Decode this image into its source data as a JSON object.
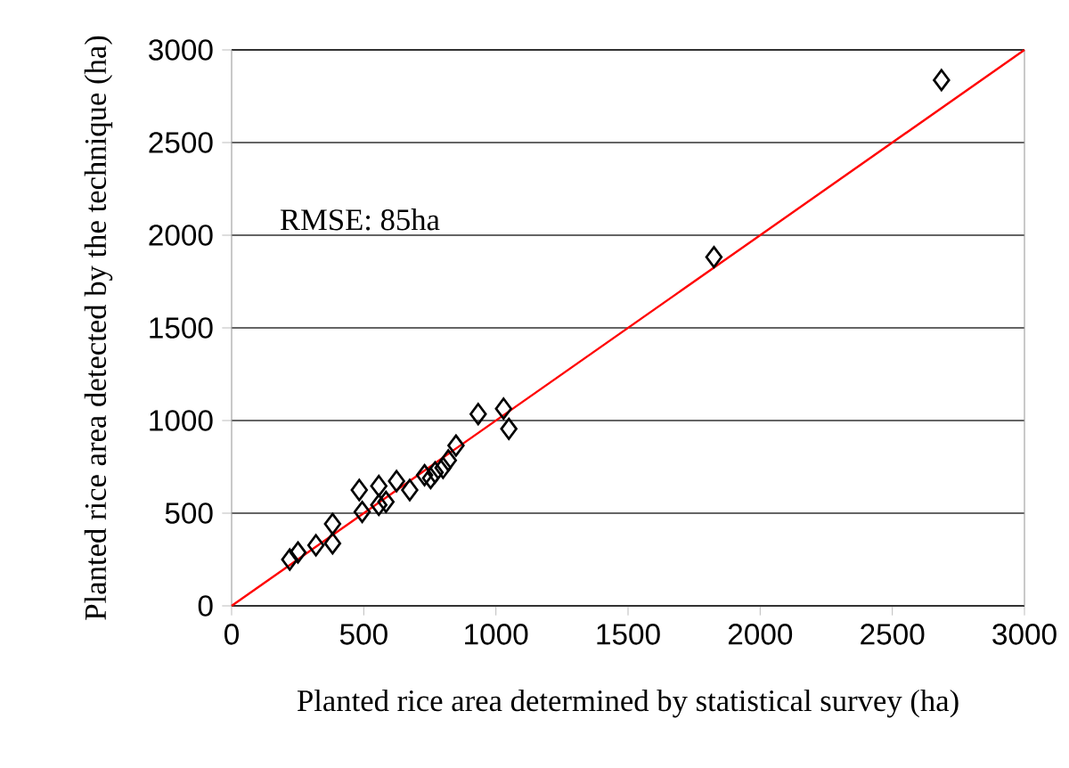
{
  "chart_data": {
    "type": "scatter",
    "xlabel": "Planted rice area determined by statistical survey (ha)",
    "ylabel": "Planted rice area detected by the technique (ha)",
    "xlim": [
      0,
      3000
    ],
    "ylim": [
      0,
      3000
    ],
    "xticks": [
      0,
      500,
      1000,
      1500,
      2000,
      2500,
      3000
    ],
    "yticks": [
      0,
      500,
      1000,
      1500,
      2000,
      2500,
      3000
    ],
    "grid": "y",
    "marker": "diamond",
    "annotations": [
      "RMSE: 85ha"
    ],
    "series": [
      {
        "color": "#000000",
        "x": [
          220,
          251,
          319,
          382,
          382,
          483,
          494,
          557,
          557,
          584,
          624,
          674,
          730,
          753,
          770,
          800,
          820,
          849,
          933,
          1029,
          1049,
          1825,
          2686
        ],
        "values": [
          250,
          288,
          327,
          442,
          337,
          625,
          507,
          647,
          545,
          561,
          673,
          625,
          705,
          689,
          720,
          745,
          785,
          865,
          1035,
          1064,
          955,
          1882,
          2837
        ]
      },
      {
        "type": "line",
        "color": "#ff0000",
        "marker": "none",
        "x": [
          0,
          3000
        ],
        "values": [
          0,
          3000
        ]
      }
    ]
  }
}
